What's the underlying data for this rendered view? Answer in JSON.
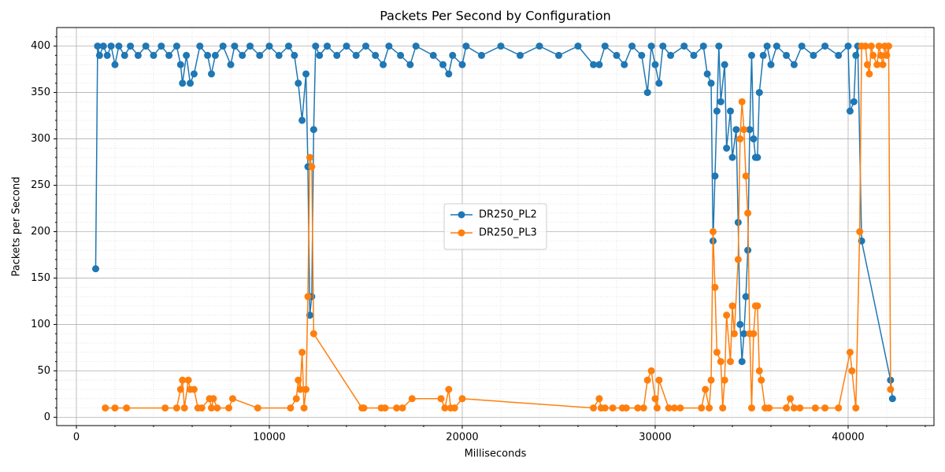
{
  "chart_data": {
    "type": "line",
    "title": "Packets Per Second by Configuration",
    "x_label": "Milliseconds",
    "y_label": "Packets per Second",
    "xlim": [
      -1020,
      44450
    ],
    "ylim": [
      -9,
      420
    ],
    "xticks": [
      0,
      10000,
      20000,
      30000,
      40000
    ],
    "yticks": [
      0,
      50,
      100,
      150,
      200,
      250,
      300,
      350,
      400
    ],
    "xminorticks": [
      2000,
      4000,
      6000,
      8000,
      12000,
      14000,
      16000,
      18000,
      22000,
      24000,
      26000,
      28000,
      32000,
      34000,
      36000,
      38000,
      42000,
      44000
    ],
    "yminorticks": [
      10,
      20,
      30,
      40,
      60,
      70,
      80,
      90,
      110,
      120,
      130,
      140,
      160,
      170,
      180,
      190,
      210,
      220,
      230,
      240,
      260,
      270,
      280,
      290,
      310,
      320,
      330,
      340,
      360,
      370,
      380,
      390,
      410
    ],
    "grid": true,
    "minor_grid": true,
    "legend": "center",
    "series": [
      {
        "name": "DR250_PL2",
        "color": "#1f77b4",
        "x": [
          1000,
          1100,
          1200,
          1400,
          1600,
          1800,
          2000,
          2200,
          2500,
          2800,
          3200,
          3600,
          4000,
          4400,
          4800,
          5200,
          5400,
          5500,
          5700,
          5900,
          6100,
          6400,
          6800,
          7000,
          7200,
          7600,
          8000,
          8200,
          8600,
          9000,
          9500,
          10000,
          10500,
          11000,
          11300,
          11500,
          11700,
          11900,
          12000,
          12100,
          12200,
          12300,
          12400,
          12600,
          13000,
          13500,
          14000,
          14500,
          15000,
          15500,
          15900,
          16200,
          16800,
          17300,
          17600,
          18500,
          19000,
          19300,
          19500,
          20000,
          20200,
          21000,
          22000,
          23000,
          24000,
          25000,
          26000,
          26800,
          27100,
          27400,
          28000,
          28400,
          28800,
          29300,
          29600,
          29800,
          30000,
          30200,
          30400,
          30800,
          31500,
          32000,
          32500,
          32700,
          32900,
          33000,
          33100,
          33200,
          33300,
          33400,
          33600,
          33700,
          33900,
          34000,
          34200,
          34300,
          34400,
          34500,
          34600,
          34700,
          34800,
          34900,
          35000,
          35100,
          35200,
          35300,
          35400,
          35600,
          35800,
          36000,
          36300,
          36800,
          37200,
          37600,
          38200,
          38800,
          39500,
          40000,
          40100,
          40300,
          40400,
          40500,
          40700,
          42200,
          42300
        ],
        "values": [
          160,
          400,
          390,
          400,
          390,
          400,
          380,
          400,
          390,
          400,
          390,
          400,
          390,
          400,
          390,
          400,
          380,
          360,
          390,
          360,
          370,
          400,
          390,
          370,
          390,
          400,
          380,
          400,
          390,
          400,
          390,
          400,
          390,
          400,
          390,
          360,
          320,
          370,
          270,
          110,
          130,
          310,
          400,
          390,
          400,
          390,
          400,
          390,
          400,
          390,
          380,
          400,
          390,
          380,
          400,
          390,
          380,
          370,
          390,
          380,
          400,
          390,
          400,
          390,
          400,
          390,
          400,
          380,
          380,
          400,
          390,
          380,
          400,
          390,
          350,
          400,
          380,
          360,
          400,
          390,
          400,
          390,
          400,
          370,
          360,
          190,
          260,
          330,
          400,
          340,
          380,
          290,
          330,
          280,
          310,
          210,
          100,
          60,
          90,
          130,
          180,
          310,
          390,
          300,
          280,
          280,
          350,
          390,
          400,
          380,
          400,
          390,
          380,
          400,
          390,
          400,
          390,
          400,
          330,
          340,
          390,
          400,
          190,
          40,
          20
        ]
      },
      {
        "name": "DR250_PL3",
        "color": "#ff7f0e",
        "x": [
          1500,
          2000,
          2600,
          4600,
          5200,
          5400,
          5500,
          5600,
          5800,
          5900,
          6100,
          6300,
          6500,
          6900,
          7000,
          7100,
          7300,
          7900,
          8100,
          9400,
          11100,
          11400,
          11500,
          11600,
          11700,
          11800,
          11900,
          12000,
          12100,
          12200,
          12300,
          14800,
          14900,
          15800,
          16000,
          16600,
          16900,
          17400,
          18900,
          19100,
          19300,
          19400,
          19600,
          20000,
          26800,
          27100,
          27200,
          27400,
          27800,
          28300,
          28500,
          29100,
          29400,
          29600,
          29800,
          30000,
          30100,
          30200,
          30700,
          31000,
          31300,
          32400,
          32600,
          32800,
          32900,
          33000,
          33100,
          33200,
          33400,
          33500,
          33600,
          33700,
          33900,
          34000,
          34100,
          34300,
          34400,
          34500,
          34600,
          34700,
          34800,
          34900,
          35000,
          35100,
          35200,
          35300,
          35400,
          35500,
          35700,
          35900,
          36800,
          37000,
          37200,
          37500,
          38300,
          38800,
          39500,
          40100,
          40200,
          40400,
          40600,
          40700,
          40900,
          41000,
          41100,
          41200,
          41300,
          41500,
          41600,
          41700,
          41800,
          41900,
          42000,
          42100,
          42200
        ],
        "values": [
          10,
          10,
          10,
          10,
          10,
          30,
          40,
          10,
          40,
          30,
          30,
          10,
          10,
          20,
          10,
          20,
          10,
          10,
          20,
          10,
          10,
          20,
          40,
          30,
          70,
          10,
          30,
          130,
          280,
          270,
          90,
          10,
          10,
          10,
          10,
          10,
          10,
          20,
          20,
          10,
          30,
          10,
          10,
          20,
          10,
          20,
          10,
          10,
          10,
          10,
          10,
          10,
          10,
          40,
          50,
          20,
          10,
          40,
          10,
          10,
          10,
          10,
          30,
          10,
          40,
          200,
          140,
          70,
          60,
          10,
          40,
          110,
          60,
          120,
          90,
          170,
          300,
          340,
          310,
          260,
          220,
          90,
          10,
          90,
          120,
          120,
          50,
          40,
          10,
          10,
          10,
          20,
          10,
          10,
          10,
          10,
          10,
          70,
          50,
          10,
          200,
          400,
          400,
          380,
          370,
          400,
          390,
          380,
          400,
          390,
          380,
          400,
          390,
          400,
          30
        ]
      }
    ]
  }
}
